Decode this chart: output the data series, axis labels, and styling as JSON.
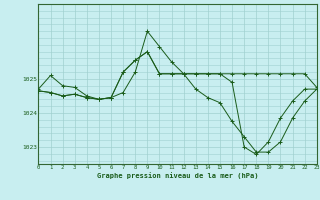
{
  "xlabel": "Graphe pression niveau de la mer (hPa)",
  "background_color": "#c8eef0",
  "grid_color": "#a0d0d0",
  "line_color": "#1a5c1a",
  "marker_color": "#1a5c1a",
  "xmin": 0,
  "xmax": 23,
  "ymin": 1022.5,
  "ymax": 1027.2,
  "yticks": [
    1023,
    1024,
    1025
  ],
  "xticks": [
    0,
    1,
    2,
    3,
    4,
    5,
    6,
    7,
    8,
    9,
    10,
    11,
    12,
    13,
    14,
    15,
    16,
    17,
    18,
    19,
    20,
    21,
    22,
    23
  ],
  "series": [
    {
      "x": [
        0,
        1,
        2,
        3,
        4,
        5,
        6,
        7,
        8,
        9,
        10,
        11,
        12,
        13,
        14,
        15,
        16,
        17,
        18,
        19,
        20,
        21,
        22,
        23
      ],
      "y": [
        1024.7,
        1025.1,
        1024.8,
        1024.75,
        1024.5,
        1024.4,
        1024.45,
        1024.6,
        1025.2,
        1026.4,
        1025.95,
        1025.5,
        1025.15,
        1024.7,
        1024.45,
        1024.3,
        1023.75,
        1023.3,
        1022.85,
        1022.85,
        1023.15,
        1023.85,
        1024.35,
        1024.7
      ]
    },
    {
      "x": [
        0,
        1,
        2,
        3,
        4,
        5,
        6,
        7,
        8,
        9,
        10,
        11,
        12,
        13,
        14,
        15,
        16,
        17,
        18,
        19,
        20,
        21,
        22,
        23
      ],
      "y": [
        1024.65,
        1024.6,
        1024.5,
        1024.55,
        1024.45,
        1024.4,
        1024.45,
        1025.2,
        1025.55,
        1025.8,
        1025.15,
        1025.15,
        1025.15,
        1025.15,
        1025.15,
        1025.15,
        1025.15,
        1025.15,
        1025.15,
        1025.15,
        1025.15,
        1025.15,
        1025.15,
        1024.75
      ]
    },
    {
      "x": [
        0,
        1,
        2,
        3,
        4,
        5,
        6,
        7,
        8,
        9,
        10,
        11,
        12,
        13,
        14,
        15,
        16,
        17,
        18,
        19,
        20,
        21,
        22,
        23
      ],
      "y": [
        1024.65,
        1024.6,
        1024.5,
        1024.55,
        1024.45,
        1024.4,
        1024.45,
        1025.2,
        1025.55,
        1025.8,
        1025.15,
        1025.15,
        1025.15,
        1025.15,
        1025.15,
        1025.15,
        1024.9,
        1023.0,
        1022.78,
        1023.15,
        1023.85,
        1024.35,
        1024.7,
        1024.7
      ]
    }
  ]
}
